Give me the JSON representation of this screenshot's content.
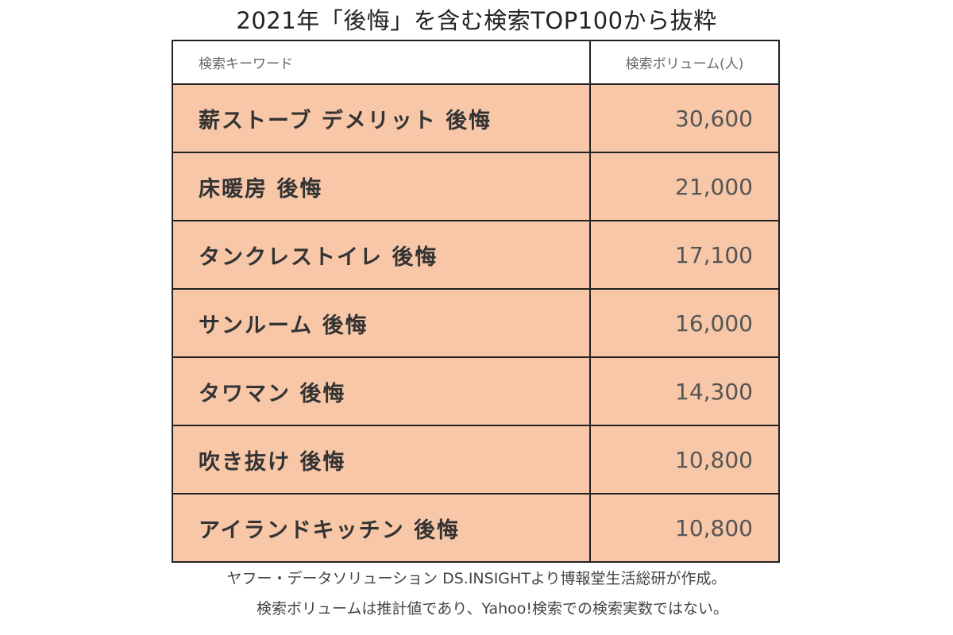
{
  "title": "2021年「後悔」を含む検索TOP100から抜粋",
  "table": {
    "headers": {
      "keyword": "検索キーワード",
      "volume": "検索ボリューム(人)"
    },
    "rows": [
      {
        "keyword": "薪ストーブ デメリット 後悔",
        "volume": "30,600"
      },
      {
        "keyword": "床暖房 後悔",
        "volume": "21,000"
      },
      {
        "keyword": "タンクレストイレ 後悔",
        "volume": "17,100"
      },
      {
        "keyword": "サンルーム 後悔",
        "volume": "16,000"
      },
      {
        "keyword": "タワマン 後悔",
        "volume": "14,300"
      },
      {
        "keyword": "吹き抜け 後悔",
        "volume": "10,800"
      },
      {
        "keyword": "アイランドキッチン 後悔",
        "volume": "10,800"
      }
    ],
    "highlight_color": "#f7c7a8"
  },
  "notes": [
    "ヤフー・データソリューション DS.INSIGHTより博報堂生活総研が作成。",
    "検索ボリュームは推計値であり、Yahoo!検索での検索実数ではない。"
  ]
}
